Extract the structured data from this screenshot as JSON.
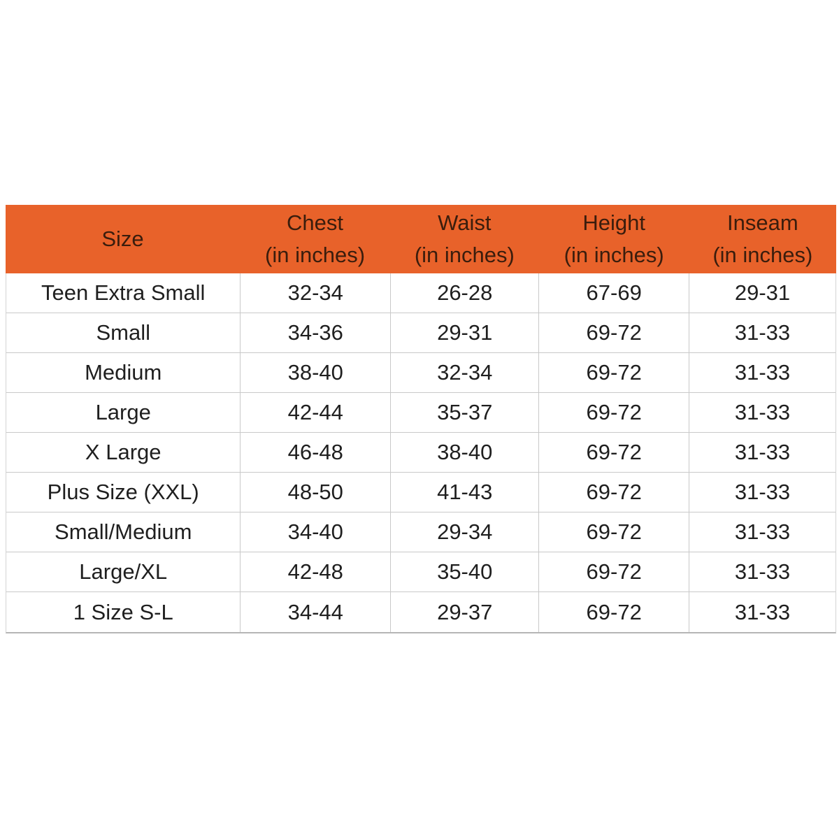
{
  "colors": {
    "page_bg": "#FFFFFF",
    "header_bg": "#E8622A",
    "header_text": "#3A1D0D",
    "body_text": "#1F1F1F",
    "grid_line": "#C9C9C9"
  },
  "table": {
    "header": {
      "cells": [
        {
          "line1": "Size",
          "line2": ""
        },
        {
          "line1": "Chest",
          "line2": "(in inches)"
        },
        {
          "line1": "Waist",
          "line2": "(in inches)"
        },
        {
          "line1": "Height",
          "line2": "(in inches)"
        },
        {
          "line1": "Inseam",
          "line2": "(in inches)"
        }
      ]
    },
    "rows": [
      [
        "Teen Extra Small",
        "32-34",
        "26-28",
        "67-69",
        "29-31"
      ],
      [
        "Small",
        "34-36",
        "29-31",
        "69-72",
        "31-33"
      ],
      [
        "Medium",
        "38-40",
        "32-34",
        "69-72",
        "31-33"
      ],
      [
        "Large",
        "42-44",
        "35-37",
        "69-72",
        "31-33"
      ],
      [
        "X Large",
        "46-48",
        "38-40",
        "69-72",
        "31-33"
      ],
      [
        "Plus Size (XXL)",
        "48-50",
        "41-43",
        "69-72",
        "31-33"
      ],
      [
        "Small/Medium",
        "34-40",
        "29-34",
        "69-72",
        "31-33"
      ],
      [
        "Large/XL",
        "42-48",
        "35-40",
        "69-72",
        "31-33"
      ],
      [
        "1 Size S-L",
        "34-44",
        "29-37",
        "69-72",
        "31-33"
      ]
    ]
  },
  "chart_data": {
    "type": "table",
    "columns": [
      "Size",
      "Chest (in inches)",
      "Waist (in inches)",
      "Height (in inches)",
      "Inseam (in inches)"
    ],
    "rows": [
      [
        "Teen Extra Small",
        "32-34",
        "26-28",
        "67-69",
        "29-31"
      ],
      [
        "Small",
        "34-36",
        "29-31",
        "69-72",
        "31-33"
      ],
      [
        "Medium",
        "38-40",
        "32-34",
        "69-72",
        "31-33"
      ],
      [
        "Large",
        "42-44",
        "35-37",
        "69-72",
        "31-33"
      ],
      [
        "X Large",
        "46-48",
        "38-40",
        "69-72",
        "31-33"
      ],
      [
        "Plus Size (XXL)",
        "48-50",
        "41-43",
        "69-72",
        "31-33"
      ],
      [
        "Small/Medium",
        "34-40",
        "29-34",
        "69-72",
        "31-33"
      ],
      [
        "Large/XL",
        "42-48",
        "35-40",
        "69-72",
        "31-33"
      ],
      [
        "1 Size S-L",
        "34-44",
        "29-37",
        "69-72",
        "31-33"
      ]
    ],
    "layout": {
      "header_background": "#E8622A",
      "grid": true,
      "row_background": "#FFFFFF"
    }
  }
}
